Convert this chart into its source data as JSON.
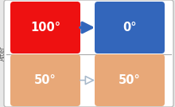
{
  "bg_color": "#e8e8e8",
  "outer_border_color": "#bbbbbb",
  "outer_facecolor": "#ffffff",
  "divider_color": "#aaaaaa",
  "box1_color": "#ee1111",
  "box2_color": "#3366bb",
  "box3_color": "#e8a878",
  "box4_color": "#e8a878",
  "arrow_top_color": "#3366bb",
  "arrow_bottom_stroke": "#aabbcc",
  "arrow_bottom_face": "#ddeeff",
  "label1": "100°",
  "label2": "0°",
  "label3": "50°",
  "label4": "50°",
  "text_color": "#ffffff",
  "ylabel": "After",
  "fontsize": 10.5,
  "ylabel_fontsize": 5.5
}
